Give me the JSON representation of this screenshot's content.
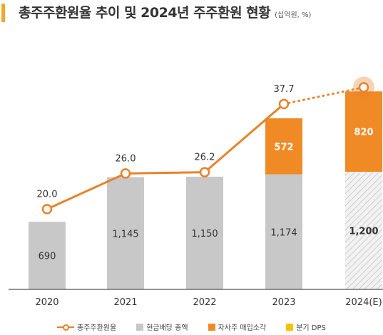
{
  "title": "총주주환원율 추이 및 2024년 주주환원 현황",
  "subtitle": "(십억원, %)",
  "colors": {
    "accent": "#f5a623",
    "dividend": "#c8c8c8",
    "buyback": "#f08a24",
    "line": "#e8822a",
    "axis": "#555555",
    "quarterly_dps": "#f5c400"
  },
  "chart_data": {
    "type": "bar",
    "categories": [
      "2020",
      "2021",
      "2022",
      "2023",
      "2024(E)"
    ],
    "series": [
      {
        "name": "현금배당 총액",
        "values": [
          690,
          1145,
          1150,
          1174,
          1200
        ],
        "labels": [
          "690",
          "1,145",
          "1,150",
          "1,174",
          "1,200"
        ]
      },
      {
        "name": "자사주 매입소각",
        "values": [
          0,
          0,
          0,
          572,
          820
        ],
        "labels": [
          "",
          "",
          "",
          "572",
          "820"
        ]
      }
    ],
    "line_series": {
      "name": "총주주환원율",
      "values": [
        20.0,
        26.0,
        26.2,
        37.7,
        40.5
      ],
      "labels": [
        "20.0",
        "26.0",
        "26.2",
        "37.7",
        ""
      ]
    },
    "legend": [
      "총주주환원율",
      "현금배당 총액",
      "자사주 매입소각",
      "분기 DPS"
    ],
    "legend_position": "bottom",
    "grid": false
  }
}
